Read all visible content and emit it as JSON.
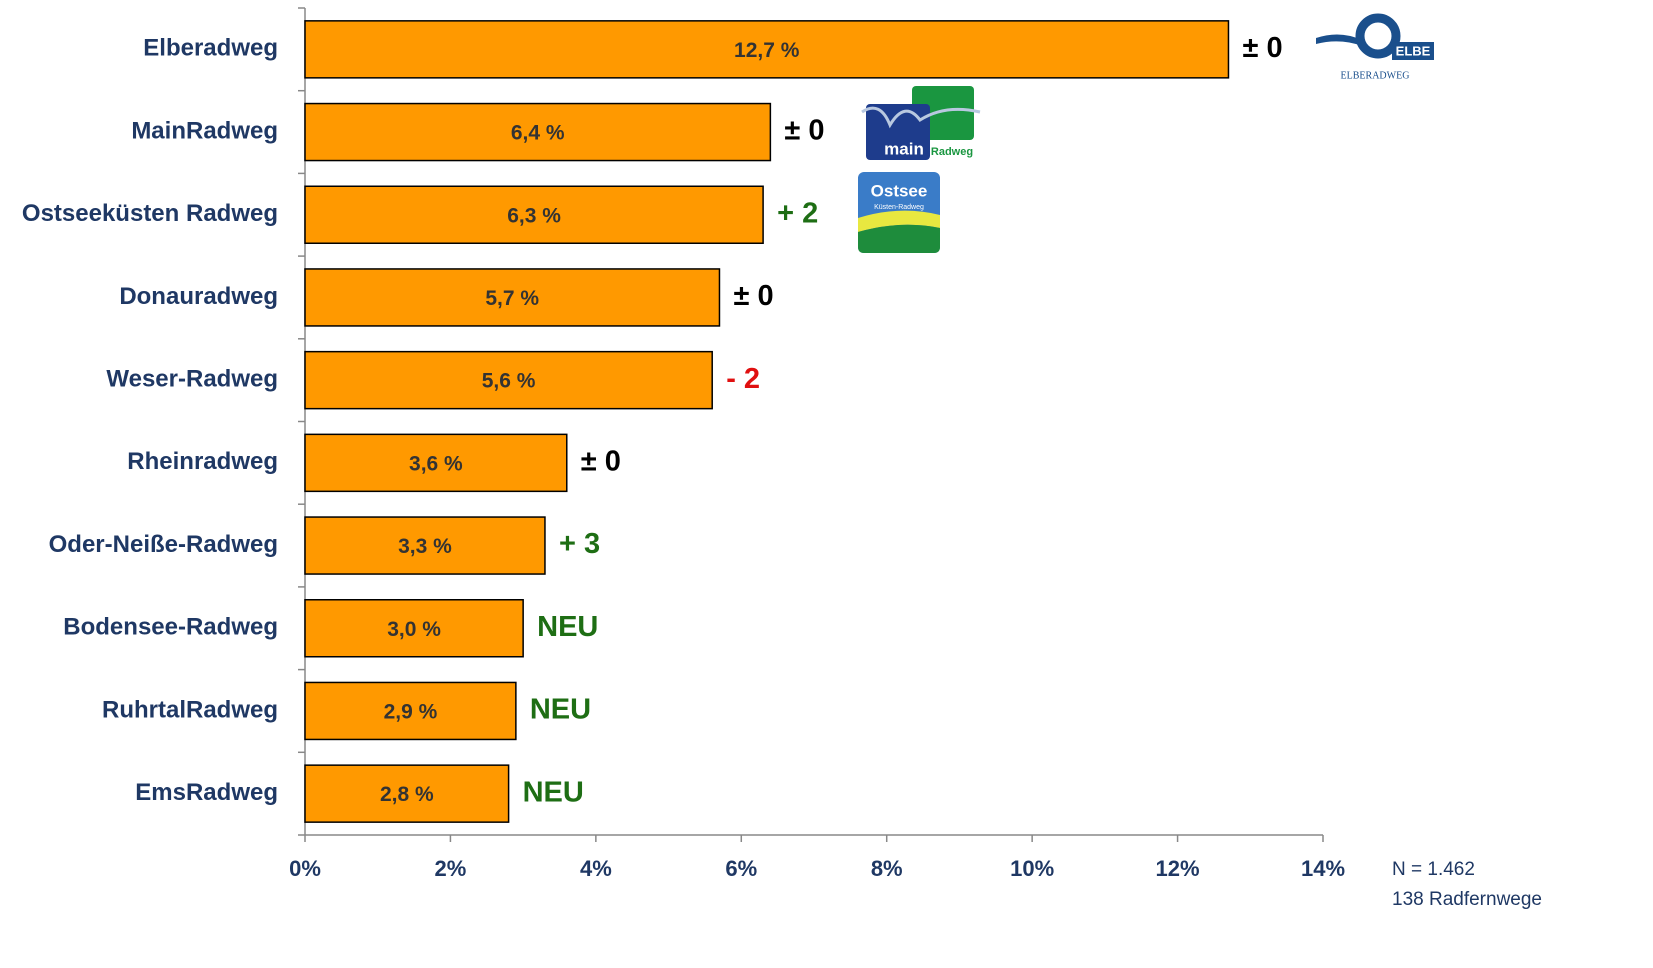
{
  "chart_data": {
    "type": "bar",
    "orientation": "horizontal",
    "categories": [
      "Elberadweg",
      "MainRadweg",
      "Ostseeküsten Radweg",
      "Donauradweg",
      "Weser-Radweg",
      "Rheinradweg",
      "Oder-Neiße-Radweg",
      "Bodensee-Radweg",
      "RuhrtalRadweg",
      "EmsRadweg"
    ],
    "values": [
      12.7,
      6.4,
      6.3,
      5.7,
      5.6,
      3.6,
      3.3,
      3.0,
      2.9,
      2.8
    ],
    "value_labels": [
      "12,7 %",
      "6,4 %",
      "6,3 %",
      "5,7 %",
      "5,6 %",
      "3,6 %",
      "3,3 %",
      "3,0 %",
      "2,9 %",
      "2,8 %"
    ],
    "color": "#ff9900",
    "xlim": [
      0,
      14
    ],
    "xticks": [
      {
        "value": 0,
        "label": "0%"
      },
      {
        "value": 2,
        "label": "2%"
      },
      {
        "value": 4,
        "label": "4%"
      },
      {
        "value": 6,
        "label": "6%"
      },
      {
        "value": 8,
        "label": "8%"
      },
      {
        "value": 10,
        "label": "10%"
      },
      {
        "value": 12,
        "label": "12%"
      },
      {
        "value": 14,
        "label": "14%"
      }
    ],
    "change_labels": [
      "± 0",
      "± 0",
      "+ 2",
      "± 0",
      "- 2",
      "± 0",
      "+ 3",
      "NEU",
      "NEU",
      "NEU"
    ],
    "change_colors": [
      "#000000",
      "#000000",
      "#1e6e14",
      "#000000",
      "#e01010",
      "#000000",
      "#1e6e14",
      "#1e6e14",
      "#1e6e14",
      "#1e6e14"
    ],
    "note": [
      "N = 1.462",
      "138 Radfernwege"
    ]
  },
  "logos": {
    "elbe": {
      "text": "ELBE",
      "caption": "ELBERADWEG"
    },
    "main": {
      "text": "main",
      "caption": "Radweg"
    },
    "ostsee": {
      "text": "Ostsee",
      "caption": "Küsten-Radweg"
    }
  }
}
